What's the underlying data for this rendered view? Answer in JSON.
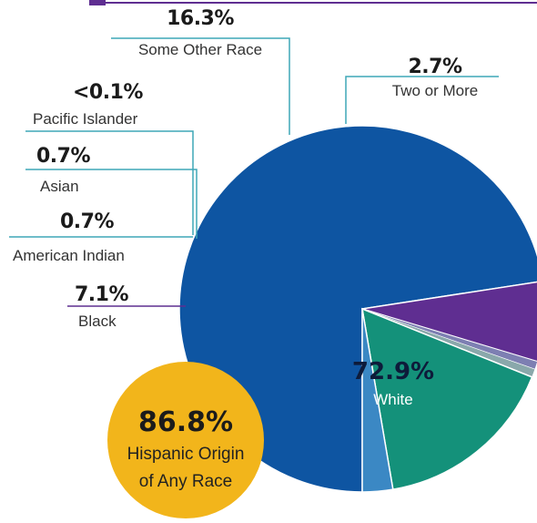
{
  "chart_data": {
    "type": "pie",
    "categories": [
      "White",
      "Black",
      "American Indian",
      "Asian",
      "Pacific Islander",
      "Some Other Race",
      "Two or More"
    ],
    "values": [
      72.9,
      7.1,
      0.7,
      0.7,
      0.05,
      16.3,
      2.7
    ],
    "value_labels": [
      "72.9%",
      "7.1%",
      "0.7%",
      "0.7%",
      "<0.1%",
      "16.3%",
      "2.7%"
    ],
    "colors": [
      "#0e55a2",
      "#5f2e91",
      "#7d7fb2",
      "#8aa8ab",
      "#c9d3d6",
      "#14917a",
      "#3b88c4"
    ],
    "legend": "callout labels"
  },
  "hispanic": {
    "value": "86.8%",
    "label_line1": "Hispanic Origin",
    "label_line2": "of Any Race",
    "color": "#f2b51b"
  },
  "leader_color": "#3fa7b7",
  "black_leader_color": "#5f2e91",
  "top_bar_color": "#5f2e91"
}
